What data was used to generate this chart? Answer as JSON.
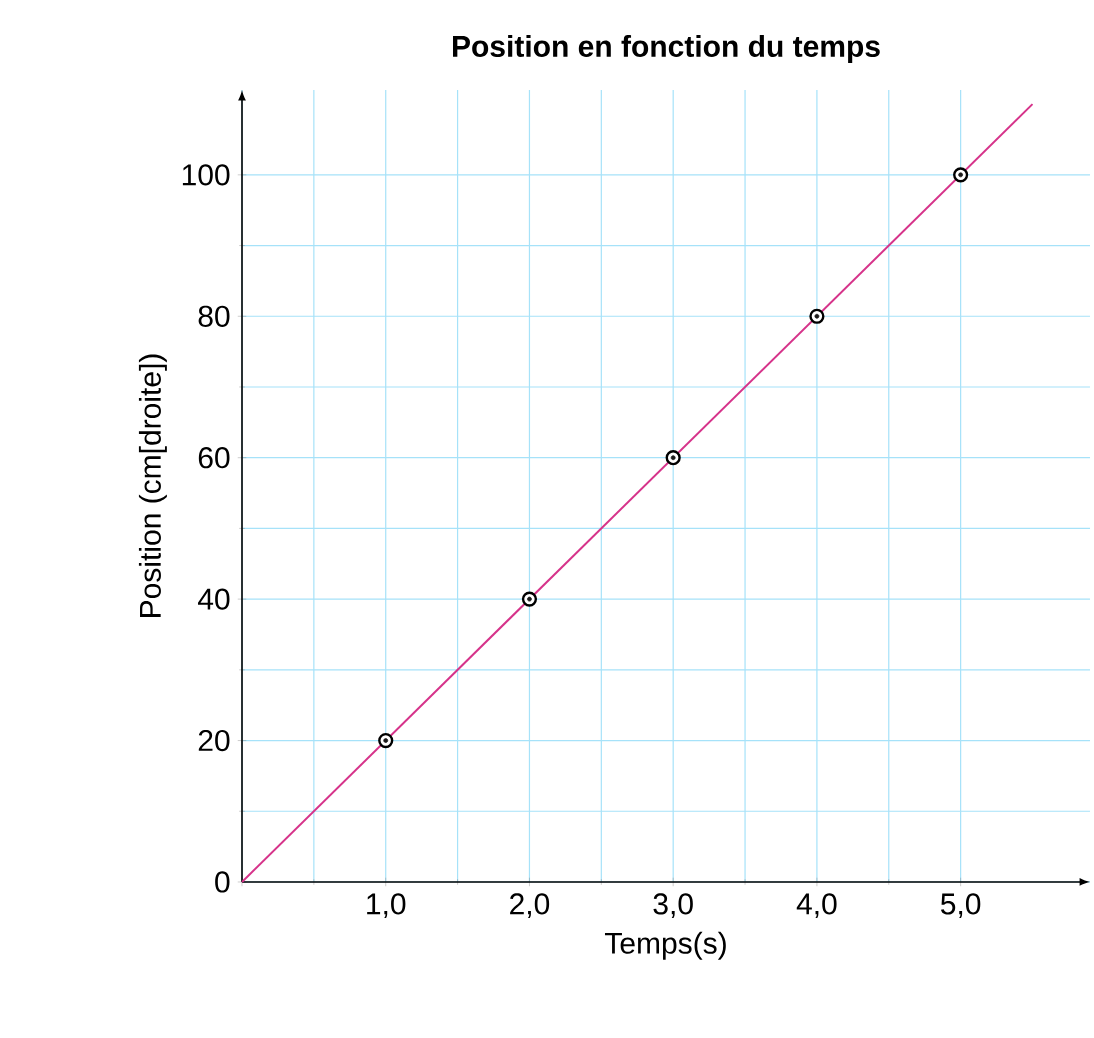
{
  "chart_data": {
    "type": "scatter",
    "title": "Position en fonction du temps",
    "xlabel": "Temps(s)",
    "ylabel": "Position (cm[droite])",
    "xlim": [
      0,
      5.9
    ],
    "ylim": [
      0,
      112
    ],
    "xticks": [
      {
        "value": 0,
        "label": null
      },
      {
        "value": 1,
        "label": "1,0"
      },
      {
        "value": 2,
        "label": "2,0"
      },
      {
        "value": 3,
        "label": "3,0"
      },
      {
        "value": 4,
        "label": "4,0"
      },
      {
        "value": 5,
        "label": "5,0"
      }
    ],
    "yticks": [
      0,
      20,
      40,
      60,
      80,
      100
    ],
    "grid": true,
    "series": [
      {
        "type": "line",
        "color": "#d6338a",
        "x": [
          0,
          5.5
        ],
        "values": [
          0,
          110
        ],
        "marker": "none"
      },
      {
        "color": "#1a1a1a",
        "x": [
          1,
          2,
          3,
          4,
          5
        ],
        "values": [
          20,
          40,
          60,
          80,
          100
        ],
        "marker": "circle"
      }
    ]
  }
}
